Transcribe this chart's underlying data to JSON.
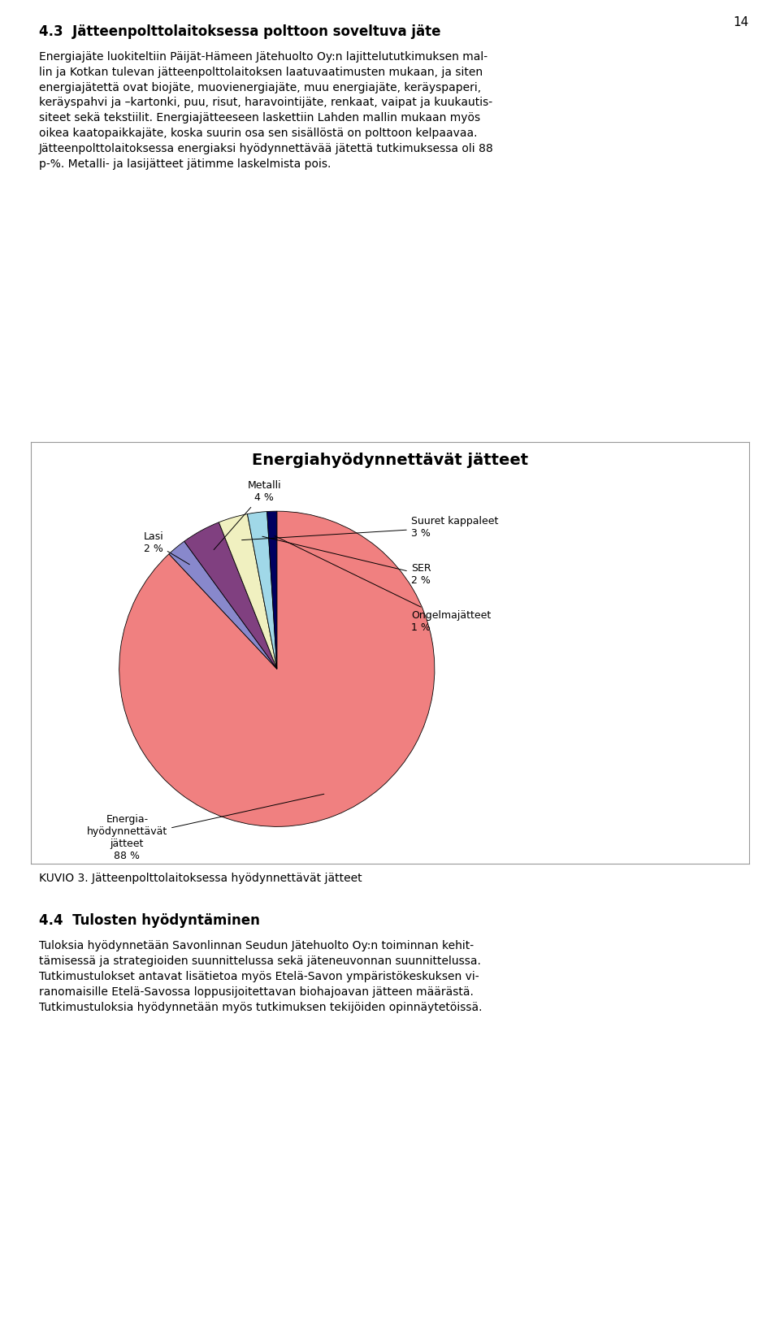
{
  "title": "Energiahyödynnettävät jätteet",
  "slices": [
    88,
    2,
    4,
    3,
    2,
    1
  ],
  "colors": [
    "#F08080",
    "#8888CC",
    "#804080",
    "#F0F0C0",
    "#A0D8E8",
    "#000060"
  ],
  "background_color": "#ffffff",
  "title_fontsize": 14,
  "label_fontsize": 9,
  "page_number": "14",
  "section_header": "4.3  Jätteenpolttolaitoksessa polttoon soveltuva jäte",
  "body_text": "Energiajäte luokiteltiin Päijät-Hämeen Jätehuolto Oy:n lajittelututkimuksen mal-\nlin ja Kotkan tulevan jätteenpolttolaitoksen laatuvaatimusten mukaan, ja siten\nenergiajätettä ovat biojäte, muovienergiajäte, muu energiajäte, keräyspaperi,\nkeräyspahvi ja –kartonki, puu, risut, haravointijäte, renkaat, vaipat ja kuukautis-\nsiteet sekä tekstiilit. Energiajätteeseen laskettiin Lahden mallin mukaan myös\noikea kaatopaikkajäte, koska suurin osa sen sisällöstä on polttoon kelpaavaa.\nJätteenpolttolaitoksessa energiaksi hyödynnettävää jätettä tutkimuksessa oli 88\np-%. Metalli- ja lasijätteet jätimme laskelmista pois.",
  "caption": "KUVIO 3. Jätteenpolttolaitoksessa hyödynnettävät jätteet",
  "section_header2": "4.4  Tulosten hyödyntäminen",
  "body_text2": "Tuloksia hyödynnetään Savonlinnan Seudun Jätehuolto Oy:n toiminnan kehit-\ntämisessä ja strategioiden suunnittelussa sekä jäteneuvonnan suunnittelussa.\nTutkimustulokset antavat lisätietoa myös Etelä-Savon ympäristökeskuksen vi-\nranomaisille Etelä-Savossa loppusijoitettavan biohajoavan jätteen määrästä.\nTutkimustuloksia hyödynnetään myös tutkimuksen tekijöiden opinnäytetöissä."
}
